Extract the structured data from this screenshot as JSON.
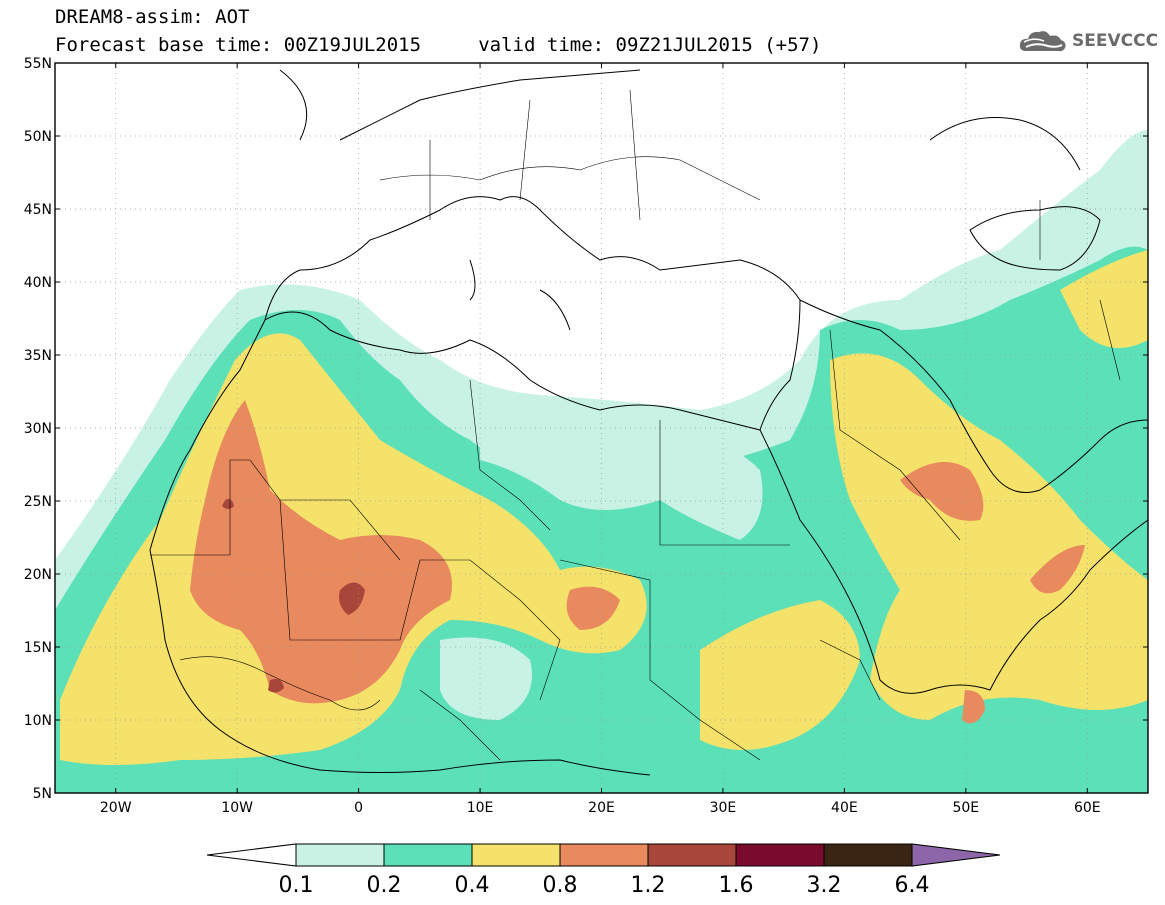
{
  "header": {
    "line1": "DREAM8-assim: AOT",
    "line2": "Forecast base time: 00Z19JUL2015     valid time: 09Z21JUL2015 (+57)",
    "logo_text": "SEEVCCC",
    "logo_icon": "cloud-icon"
  },
  "map": {
    "lon_range": [
      -25,
      65
    ],
    "lat_range": [
      5,
      55
    ],
    "x_ticks": [
      {
        "value": -20,
        "label": "20W"
      },
      {
        "value": -10,
        "label": "10W"
      },
      {
        "value": 0,
        "label": "0"
      },
      {
        "value": 10,
        "label": "10E"
      },
      {
        "value": 20,
        "label": "20E"
      },
      {
        "value": 30,
        "label": "30E"
      },
      {
        "value": 40,
        "label": "40E"
      },
      {
        "value": 50,
        "label": "50E"
      },
      {
        "value": 60,
        "label": "60E"
      }
    ],
    "y_ticks": [
      {
        "value": 5,
        "label": "5N"
      },
      {
        "value": 10,
        "label": "10N"
      },
      {
        "value": 15,
        "label": "15N"
      },
      {
        "value": 20,
        "label": "20N"
      },
      {
        "value": 25,
        "label": "25N"
      },
      {
        "value": 30,
        "label": "30N"
      },
      {
        "value": 35,
        "label": "35N"
      },
      {
        "value": 40,
        "label": "40N"
      },
      {
        "value": 45,
        "label": "45N"
      },
      {
        "value": 50,
        "label": "50N"
      },
      {
        "value": 55,
        "label": "55N"
      }
    ],
    "grid": "dotted"
  },
  "colorbar": {
    "levels": [
      "0.1",
      "0.2",
      "0.4",
      "0.8",
      "1.2",
      "1.6",
      "3.2",
      "6.4"
    ],
    "colors": [
      "#ffffff",
      "#c8f2e4",
      "#5ce0b8",
      "#f5e26a",
      "#e8895e",
      "#a8463a",
      "#7a0b2c",
      "#3a2414",
      "#8c66a8"
    ]
  }
}
